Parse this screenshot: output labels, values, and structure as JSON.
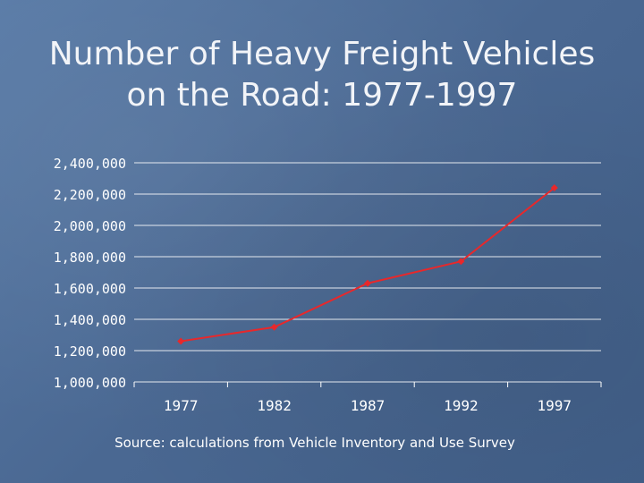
{
  "slide": {
    "title_line1": "Number of Heavy Freight Vehicles",
    "title_line2": "on the Road: 1977-1997",
    "source": "Source: calculations from Vehicle Inventory and Use Survey"
  },
  "chart_data": {
    "type": "line",
    "categories": [
      "1977",
      "1982",
      "1987",
      "1992",
      "1997"
    ],
    "series": [
      {
        "values": [
          1260000,
          1350000,
          1630000,
          1770000,
          2240000
        ]
      }
    ],
    "y_ticks": [
      "1,000,000",
      "1,200,000",
      "1,400,000",
      "1,600,000",
      "1,800,000",
      "2,000,000",
      "2,200,000",
      "2,400,000"
    ],
    "ylim": [
      1000000,
      2400000
    ],
    "grid": true,
    "legend": "none",
    "line_color": "#e8282b",
    "grid_color": "#ffffff",
    "text_color": "#ffffff"
  }
}
